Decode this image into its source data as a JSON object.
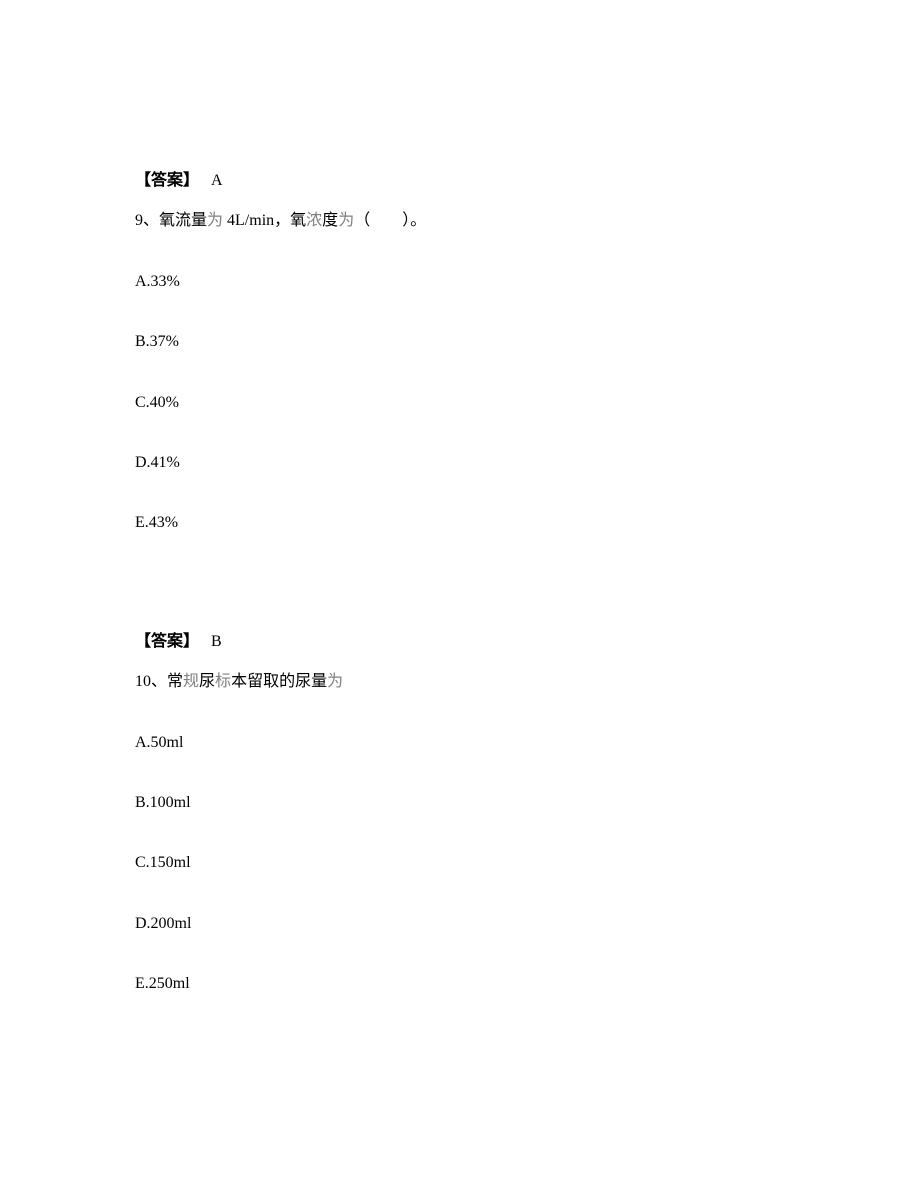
{
  "q8_answer": {
    "label_open": "【答案】",
    "letter": "A"
  },
  "q9": {
    "stem_prefix": "9、氧流量",
    "stem_gray1": "为",
    "stem_mid": " 4L/min，氧",
    "stem_gray2": "浓",
    "stem_mid2": "度",
    "stem_gray3": "为",
    "stem_suffix": "（　　）。",
    "options": {
      "A": "A.33%",
      "B": "B.37%",
      "C": "C.40%",
      "D": "D.41%",
      "E": "E.43%"
    },
    "answer": {
      "label_open": "【答案】",
      "letter": "B"
    }
  },
  "q10": {
    "stem_prefix": "10、常",
    "stem_gray1": "规",
    "stem_mid1": "尿",
    "stem_gray2": "标",
    "stem_mid2": "本留取的尿量",
    "stem_gray3": "为",
    "options": {
      "A": "A.50ml",
      "B": "B.100ml",
      "C": "C.150ml",
      "D": "D.200ml",
      "E": "E.250ml"
    }
  },
  "colors": {
    "text": "#000000",
    "gray_text": "#808080",
    "background": "#ffffff"
  },
  "typography": {
    "font_family": "SimSun",
    "font_size_pt": 12,
    "line_height": 1.4
  }
}
